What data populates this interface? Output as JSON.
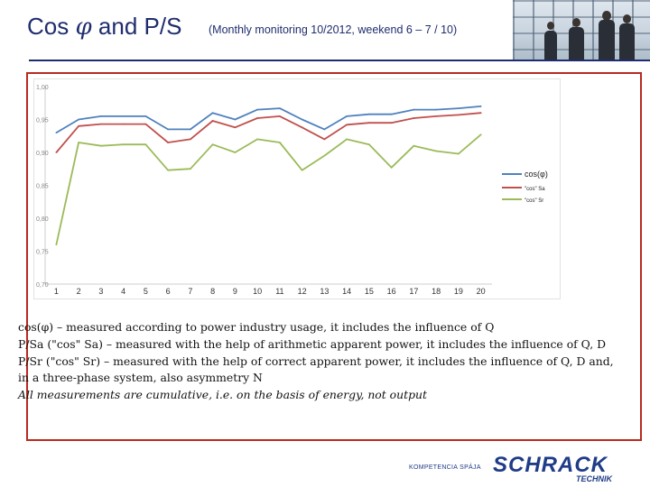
{
  "header": {
    "title_prefix": "Cos ",
    "title_phi": "φ",
    "title_suffix": " and P/S",
    "subtitle": "(Monthly monitoring 10/2012, weekend 6 – 7 / 10)"
  },
  "chart_data": {
    "type": "line",
    "title": "",
    "xlabel": "",
    "ylabel": "",
    "categories": [
      "1",
      "2",
      "3",
      "4",
      "5",
      "6",
      "7",
      "8",
      "9",
      "10",
      "11",
      "12",
      "13",
      "14",
      "15",
      "16",
      "17",
      "18",
      "19",
      "20"
    ],
    "ylim": [
      0.7,
      1.0
    ],
    "yticks": [
      "0,70",
      "0,75",
      "0,80",
      "0,85",
      "0,90",
      "0,95",
      "1,00"
    ],
    "series": [
      {
        "name": "cos(φ)",
        "color": "#4f81bd",
        "values": [
          0.93,
          0.95,
          0.955,
          0.955,
          0.955,
          0.935,
          0.935,
          0.96,
          0.95,
          0.965,
          0.967,
          0.95,
          0.935,
          0.955,
          0.958,
          0.958,
          0.965,
          0.965,
          0.967,
          0.97
        ]
      },
      {
        "name": "\"cos\" Sa",
        "color": "#c0504d",
        "values": [
          0.9,
          0.94,
          0.943,
          0.943,
          0.943,
          0.915,
          0.92,
          0.948,
          0.938,
          0.952,
          0.955,
          0.938,
          0.92,
          0.942,
          0.945,
          0.945,
          0.952,
          0.955,
          0.957,
          0.96
        ]
      },
      {
        "name": "\"cos\" Sr",
        "color": "#9bbb59",
        "values": [
          0.76,
          0.915,
          0.91,
          0.912,
          0.912,
          0.873,
          0.875,
          0.912,
          0.9,
          0.92,
          0.915,
          0.873,
          0.895,
          0.92,
          0.912,
          0.877,
          0.91,
          0.902,
          0.898,
          0.927
        ]
      }
    ],
    "legend": "right"
  },
  "description": {
    "line1": "cos(φ) – measured according to power industry usage, it includes the influence of Q",
    "line2": "P/Sa (\"cos\" Sa) – measured with the help of arithmetic apparent power, it includes the influence of Q, D",
    "line3": "P/Sr (\"cos\" Sr) – measured with the help of correct apparent power, it includes the influence of Q, D and,",
    "line4": "in a three-phase system, also asymmetry N",
    "line5": "All measurements are cumulative, i.e. on the basis of energy, not output"
  },
  "footer": {
    "tagline": "KOMPETENCIA SPÁJA",
    "brand": "SCHRACK",
    "brand_sub": "TECHNIK"
  }
}
